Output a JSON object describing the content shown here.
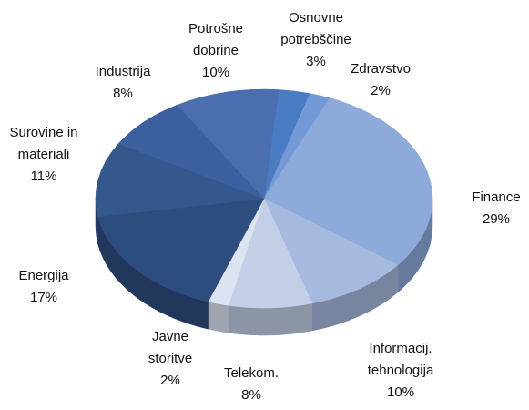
{
  "chart_data": {
    "type": "pie3d",
    "categories": [
      "Osnovne\npotrebščine",
      "Zdravstvo",
      "Finance",
      "Informacij.\ntehnologija",
      "Telekom.",
      "Javne\nstoritve",
      "Energija",
      "Surovine in\nmateriali",
      "Industrija",
      "Potrošne\ndobrine"
    ],
    "values": [
      3,
      2,
      29,
      10,
      8,
      2,
      17,
      11,
      8,
      10
    ],
    "value_labels": [
      "3%",
      "2%",
      "29%",
      "10%",
      "8%",
      "2%",
      "17%",
      "11%",
      "8%",
      "10%"
    ],
    "colors": [
      "#4a7cc4",
      "#7399d6",
      "#8eaadb",
      "#a6b9df",
      "#c3cfe7",
      "#dde4f1",
      "#2e4d7f",
      "#34578e",
      "#3c609f",
      "#4a6eae"
    ]
  }
}
